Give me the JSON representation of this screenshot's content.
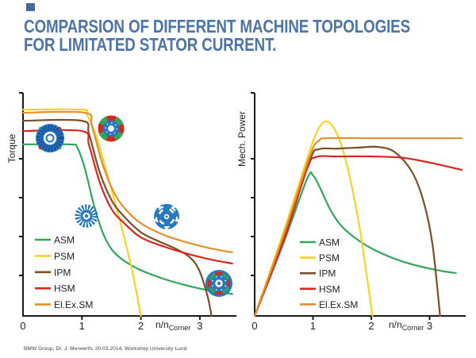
{
  "slide": {
    "title_line1": "COMPARSION OF DIFFERENT MACHINE TOPOLOGIES",
    "title_line2": "FOR LIMITATED STATOR CURRENT.",
    "footer": "BMW Group, Dr. J. Merwerth, 20.03.2014, Workshop University Lund"
  },
  "colors": {
    "title_blue": "#4d74a4",
    "asm": "#2fa65a",
    "psm": "#f6d321",
    "ipm": "#7d4d27",
    "hsm": "#d7271d",
    "elexsm": "#e2902b",
    "icon_blue": "#2878be",
    "icon_dark_blue": "#17499b",
    "axis": "#1a1a1a"
  },
  "chart_data": [
    {
      "name": "torque",
      "type": "line",
      "title": "",
      "ylabel": "Torque",
      "xlabel_main": "n/n",
      "xlabel_sub": "Corner",
      "x_ticks": [
        0,
        1,
        2,
        3
      ],
      "xlim": [
        0,
        3.62
      ],
      "ylim": [
        0,
        1
      ],
      "grid": false,
      "legend_position": "bottom-left-inside",
      "series": [
        {
          "name": "ASM",
          "color": "#2fa65a",
          "points": [
            [
              0,
              0.769
            ],
            [
              0.8,
              0.769
            ],
            [
              0.92,
              0.755
            ],
            [
              1.05,
              0.66
            ],
            [
              1.2,
              0.5
            ],
            [
              1.35,
              0.375
            ],
            [
              1.5,
              0.3
            ],
            [
              1.7,
              0.25
            ],
            [
              2.0,
              0.205
            ],
            [
              2.4,
              0.165
            ],
            [
              2.8,
              0.135
            ],
            [
              3.2,
              0.112
            ],
            [
              3.55,
              0.098
            ]
          ]
        },
        {
          "name": "PSM",
          "color": "#f6d321",
          "points": [
            [
              0,
              0.925
            ],
            [
              1.0,
              0.925
            ],
            [
              1.08,
              0.905
            ],
            [
              1.25,
              0.8
            ],
            [
              1.45,
              0.615
            ],
            [
              1.65,
              0.42
            ],
            [
              1.85,
              0.205
            ],
            [
              2.0,
              0.0
            ]
          ]
        },
        {
          "name": "IPM",
          "color": "#7d4d27",
          "points": [
            [
              0,
              0.875
            ],
            [
              1.0,
              0.875
            ],
            [
              1.12,
              0.815
            ],
            [
              1.3,
              0.645
            ],
            [
              1.5,
              0.52
            ],
            [
              1.7,
              0.45
            ],
            [
              2.0,
              0.375
            ],
            [
              2.3,
              0.335
            ],
            [
              2.6,
              0.3
            ],
            [
              2.82,
              0.265
            ],
            [
              2.98,
              0.21
            ],
            [
              3.12,
              0.1
            ],
            [
              3.2,
              0.0
            ]
          ]
        },
        {
          "name": "HSM",
          "color": "#d7271d",
          "points": [
            [
              0,
              0.829
            ],
            [
              1.0,
              0.829
            ],
            [
              1.12,
              0.765
            ],
            [
              1.3,
              0.6
            ],
            [
              1.5,
              0.48
            ],
            [
              1.7,
              0.42
            ],
            [
              2.0,
              0.352
            ],
            [
              2.4,
              0.31
            ],
            [
              2.8,
              0.278
            ],
            [
              3.2,
              0.252
            ],
            [
              3.55,
              0.235
            ]
          ]
        },
        {
          "name": "El.Ex.SM",
          "color": "#e2902b",
          "points": [
            [
              0,
              0.911
            ],
            [
              1.05,
              0.911
            ],
            [
              1.17,
              0.85
            ],
            [
              1.35,
              0.68
            ],
            [
              1.55,
              0.55
            ],
            [
              1.75,
              0.475
            ],
            [
              2.0,
              0.415
            ],
            [
              2.4,
              0.362
            ],
            [
              2.8,
              0.328
            ],
            [
              3.2,
              0.302
            ],
            [
              3.55,
              0.285
            ]
          ]
        }
      ],
      "icons": [
        {
          "type": "hsm-rotor",
          "x": 0.458,
          "y": 0.797,
          "r": 19
        },
        {
          "type": "psm-rotor",
          "x": 1.494,
          "y": 0.84,
          "r": 17
        },
        {
          "type": "asm-rotor",
          "x": 1.077,
          "y": 0.448,
          "r": 15
        },
        {
          "type": "synrm-rotor",
          "x": 2.436,
          "y": 0.445,
          "r": 16
        },
        {
          "type": "ipm-rotor",
          "x": 3.324,
          "y": 0.146,
          "r": 17
        }
      ]
    },
    {
      "name": "power",
      "type": "line",
      "title": "",
      "ylabel": "Mech. Power",
      "xlabel_main": "n/n",
      "xlabel_sub": "Corner",
      "x_ticks": [
        0,
        1,
        2,
        3
      ],
      "xlim": [
        0,
        3.62
      ],
      "ylim": [
        0,
        1
      ],
      "grid": false,
      "legend_position": "bottom-center-inside",
      "series": [
        {
          "name": "ASM",
          "color": "#2fa65a",
          "points": [
            [
              0,
              0
            ],
            [
              0.5,
              0.33
            ],
            [
              0.9,
              0.615
            ],
            [
              1.0,
              0.63
            ],
            [
              1.12,
              0.575
            ],
            [
              1.3,
              0.475
            ],
            [
              1.5,
              0.4
            ],
            [
              1.8,
              0.335
            ],
            [
              2.1,
              0.29
            ],
            [
              2.5,
              0.247
            ],
            [
              2.9,
              0.218
            ],
            [
              3.2,
              0.202
            ],
            [
              3.45,
              0.192
            ]
          ]
        },
        {
          "name": "PSM",
          "color": "#f6d321",
          "points": [
            [
              0,
              0
            ],
            [
              0.5,
              0.38
            ],
            [
              0.9,
              0.705
            ],
            [
              1.05,
              0.815
            ],
            [
              1.2,
              0.872
            ],
            [
              1.35,
              0.845
            ],
            [
              1.5,
              0.755
            ],
            [
              1.65,
              0.6
            ],
            [
              1.8,
              0.395
            ],
            [
              1.95,
              0.13
            ],
            [
              2.02,
              0.0
            ]
          ]
        },
        {
          "name": "IPM",
          "color": "#7d4d27",
          "points": [
            [
              0,
              0
            ],
            [
              0.5,
              0.355
            ],
            [
              0.95,
              0.7
            ],
            [
              1.1,
              0.747
            ],
            [
              1.4,
              0.75
            ],
            [
              1.8,
              0.755
            ],
            [
              2.1,
              0.758
            ],
            [
              2.4,
              0.735
            ],
            [
              2.7,
              0.645
            ],
            [
              2.9,
              0.51
            ],
            [
              3.05,
              0.32
            ],
            [
              3.18,
              0.0
            ]
          ]
        },
        {
          "name": "HSM",
          "color": "#d7271d",
          "points": [
            [
              0,
              0
            ],
            [
              0.5,
              0.34
            ],
            [
              0.9,
              0.66
            ],
            [
              1.05,
              0.712
            ],
            [
              1.4,
              0.715
            ],
            [
              2.0,
              0.715
            ],
            [
              2.5,
              0.71
            ],
            [
              2.8,
              0.698
            ],
            [
              3.1,
              0.682
            ],
            [
              3.55,
              0.655
            ]
          ]
        },
        {
          "name": "El.Ex.SM",
          "color": "#e2902b",
          "points": [
            [
              0,
              0
            ],
            [
              0.5,
              0.365
            ],
            [
              0.95,
              0.72
            ],
            [
              1.1,
              0.785
            ],
            [
              1.25,
              0.797
            ],
            [
              2.0,
              0.797
            ],
            [
              2.8,
              0.797
            ],
            [
              3.55,
              0.797
            ]
          ]
        }
      ],
      "icons": []
    }
  ]
}
